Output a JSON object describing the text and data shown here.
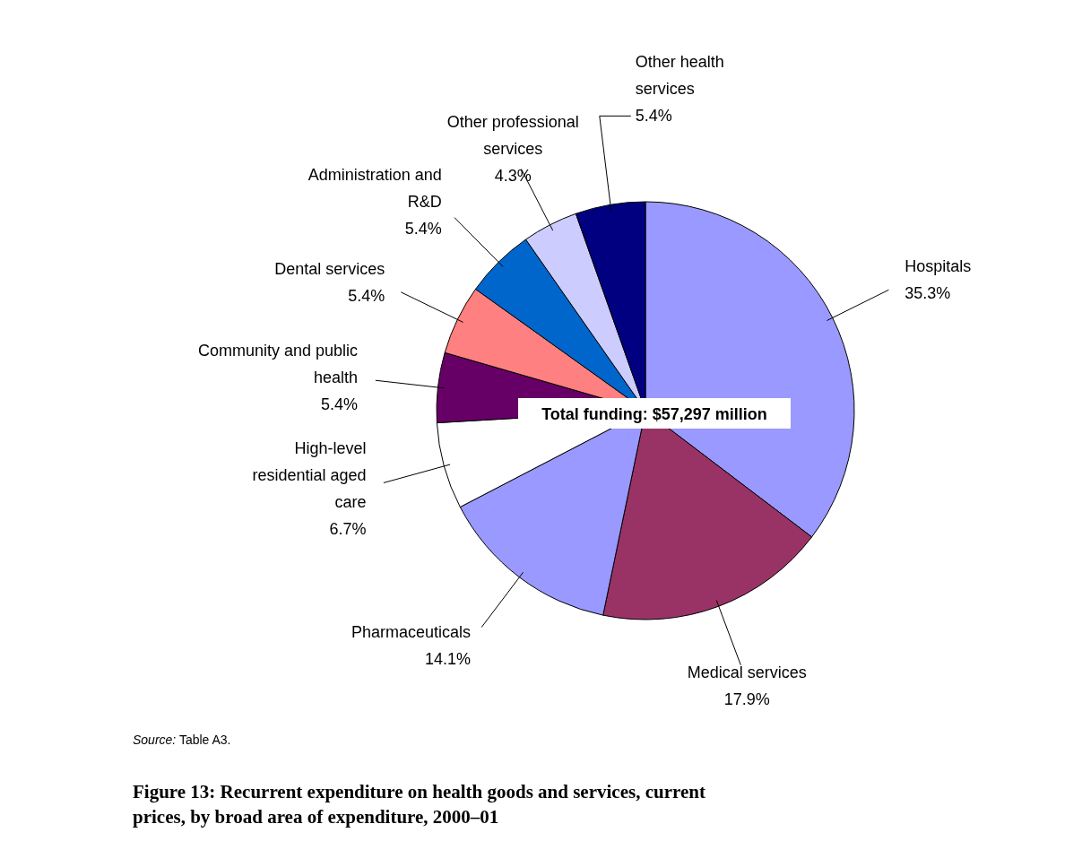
{
  "chart_data": {
    "type": "pie",
    "title": "Figure 13: Recurrent expenditure on health goods and services, current prices, by broad area of expenditure, 2000–01",
    "categories": [
      "Hospitals",
      "Medical services",
      "Pharmaceuticals",
      "High-level residential aged care",
      "Community and public health",
      "Dental services",
      "Administration and R&D",
      "Other professional services",
      "Other health services"
    ],
    "values": [
      35.3,
      17.9,
      14.1,
      6.7,
      5.4,
      5.4,
      5.4,
      4.3,
      5.4
    ],
    "value_labels": [
      "35.3%",
      "17.9%",
      "14.1%",
      "6.7%",
      "5.4%",
      "5.4%",
      "5.4%",
      "4.3%",
      "5.4%"
    ],
    "colors": [
      "#9999ff",
      "#993366",
      "#9999ff",
      "#ffffff",
      "#660066",
      "#ff8080",
      "#0066cc",
      "#ccccff",
      "#000080"
    ],
    "annotations": [
      "Total funding: $57,297 million",
      "Source: Table A3."
    ]
  }
}
